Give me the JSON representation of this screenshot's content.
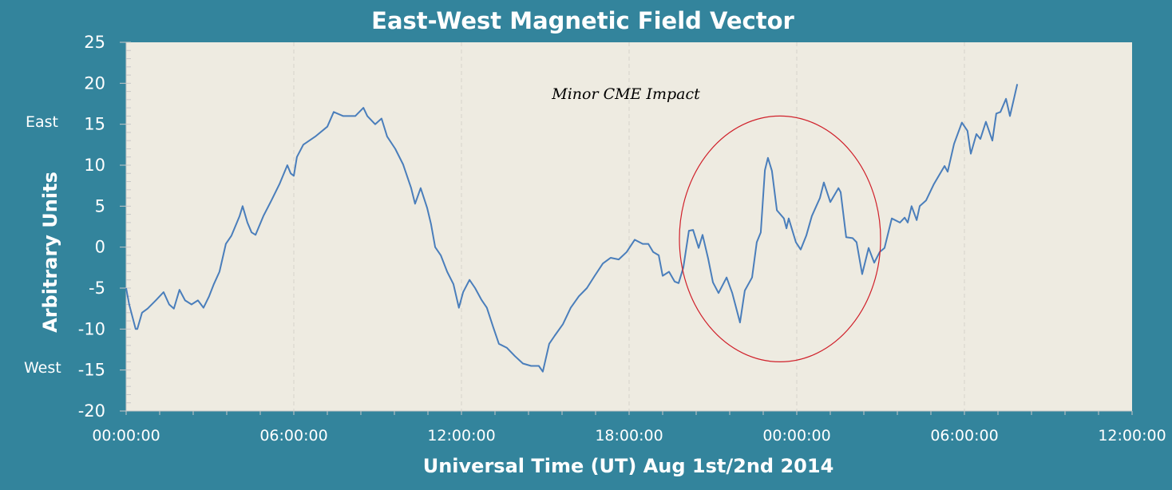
{
  "chart_data": {
    "type": "line",
    "title": "East-West Magnetic Field Vector",
    "xlabel": "Universal Time (UT)  Aug 1st/2nd 2014",
    "ylabel": "Arbitrary Units",
    "xlim_hours": [
      0,
      36
    ],
    "ylim": [
      -20,
      25
    ],
    "y_ticks": [
      25,
      20,
      15,
      10,
      5,
      0,
      -5,
      -10,
      -15,
      -20
    ],
    "x_ticks": [
      {
        "hour": 0,
        "label": "00:00:00"
      },
      {
        "hour": 6,
        "label": "06:00:00"
      },
      {
        "hour": 12,
        "label": "12:00:00"
      },
      {
        "hour": 18,
        "label": "18:00:00"
      },
      {
        "hour": 24,
        "label": "00:00:00"
      },
      {
        "hour": 30,
        "label": "06:00:00"
      },
      {
        "hour": 36,
        "label": "12:00:00"
      }
    ],
    "y_side_labels": {
      "east": "East",
      "west": "West"
    },
    "grid": "vertical dashed at major x ticks",
    "annotation": {
      "text": "Minor CME Impact",
      "highlight_center_hour": 23.4,
      "highlight_center_value": 1
    },
    "series": [
      {
        "name": "East-West field",
        "color": "#4a7ebb",
        "x_hours": [
          0,
          0.11,
          0.34,
          0.4,
          0.57,
          0.77,
          1.06,
          1.34,
          1.54,
          1.71,
          1.91,
          2.11,
          2.34,
          2.57,
          2.77,
          2.97,
          3.14,
          3.34,
          3.57,
          3.77,
          4.06,
          4.17,
          4.34,
          4.49,
          4.63,
          4.91,
          5.2,
          5.49,
          5.77,
          5.89,
          6.0,
          6.11,
          6.34,
          6.77,
          7.2,
          7.43,
          7.77,
          8.2,
          8.49,
          8.63,
          8.91,
          9.14,
          9.34,
          9.63,
          9.91,
          10.2,
          10.34,
          10.54,
          10.77,
          10.91,
          11.06,
          11.26,
          11.49,
          11.71,
          11.91,
          12.06,
          12.29,
          12.49,
          12.71,
          12.91,
          13.14,
          13.34,
          13.63,
          13.91,
          14.2,
          14.49,
          14.77,
          14.91,
          15.14,
          15.34,
          15.63,
          15.91,
          16.2,
          16.49,
          16.77,
          17.06,
          17.34,
          17.63,
          17.91,
          18.2,
          18.49,
          18.69,
          18.86,
          19.06,
          19.2,
          19.43,
          19.63,
          19.77,
          19.94,
          20.14,
          20.29,
          20.49,
          20.63,
          20.83,
          21.0,
          21.2,
          21.49,
          21.69,
          21.97,
          22.14,
          22.4,
          22.57,
          22.71,
          22.86,
          22.97,
          23.11,
          23.29,
          23.54,
          23.63,
          23.71,
          23.97,
          24.14,
          24.34,
          24.54,
          24.83,
          24.97,
          25.2,
          25.49,
          25.57,
          25.77,
          26.0,
          26.14,
          26.34,
          26.57,
          26.77,
          26.97,
          27.14,
          27.4,
          27.69,
          27.86,
          27.97,
          28.11,
          28.29,
          28.4,
          28.63,
          28.91,
          29.29,
          29.4,
          29.63,
          29.91,
          30.11,
          30.23,
          30.43,
          30.57,
          30.77,
          31.0,
          31.14,
          31.29,
          31.49,
          31.63,
          31.77,
          31.89
        ],
        "values": [
          -5,
          -7,
          -10,
          -10,
          -8,
          -7.5,
          -6.5,
          -5.5,
          -7,
          -7.5,
          -5.2,
          -6.5,
          -7,
          -6.5,
          -7.4,
          -6,
          -4.5,
          -3,
          0.4,
          1.4,
          3.8,
          5,
          3,
          1.8,
          1.5,
          3.8,
          5.7,
          7.7,
          10,
          9,
          8.7,
          11,
          12.5,
          13.5,
          14.7,
          16.5,
          16,
          16,
          17,
          16,
          15,
          15.7,
          13.5,
          12,
          10.1,
          7.2,
          5.3,
          7.2,
          4.8,
          2.8,
          0,
          -1,
          -3,
          -4.5,
          -7.4,
          -5.5,
          -4,
          -5,
          -6.4,
          -7.4,
          -9.8,
          -11.8,
          -12.3,
          -13.3,
          -14.2,
          -14.5,
          -14.5,
          -15.2,
          -11.8,
          -10.8,
          -9.4,
          -7.4,
          -6,
          -5,
          -3.5,
          -2,
          -1.3,
          -1.5,
          -0.6,
          0.9,
          0.4,
          0.4,
          -0.6,
          -1,
          -3.5,
          -3,
          -4.2,
          -4.4,
          -2.5,
          2,
          2.1,
          -0.1,
          1.5,
          -1.4,
          -4.3,
          -5.6,
          -3.7,
          -5.6,
          -9.2,
          -5.3,
          -3.7,
          0.6,
          1.8,
          9.4,
          10.9,
          9.3,
          4.5,
          3.5,
          2.3,
          3.5,
          0.6,
          -0.3,
          1.4,
          3.8,
          6,
          7.9,
          5.5,
          7.2,
          6.7,
          1.2,
          1.1,
          0.6,
          -3.3,
          -0.1,
          -1.9,
          -0.6,
          -0.1,
          3.5,
          3,
          3.6,
          3,
          5,
          3.3,
          5,
          5.7,
          7.7,
          9.9,
          9.2,
          12.6,
          15.2,
          14.2,
          11.4,
          13.8,
          13.2,
          15.3,
          13,
          16.3,
          16.5,
          18.1,
          16,
          18.1,
          19.9
        ]
      }
    ]
  }
}
